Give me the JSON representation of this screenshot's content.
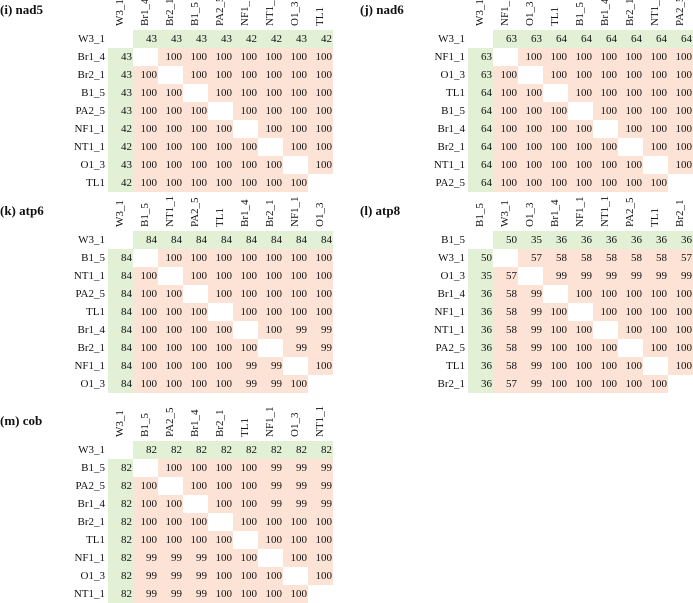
{
  "colors": {
    "similarity_high": "#fde3d6",
    "reference": "#e2f0d5",
    "diagonal": "#ffffff"
  },
  "chart_data": [
    {
      "type": "heatmap",
      "panel": "i",
      "title": "(i) nad5",
      "labels": [
        "W3_1",
        "Br1_4",
        "Br2_1",
        "B1_5",
        "PA2_5",
        "NF1_1",
        "NT1_1",
        "O1_3",
        "TL1"
      ],
      "values": [
        [
          null,
          43,
          43,
          43,
          43,
          42,
          42,
          43,
          42
        ],
        [
          43,
          null,
          100,
          100,
          100,
          100,
          100,
          100,
          100
        ],
        [
          43,
          100,
          null,
          100,
          100,
          100,
          100,
          100,
          100
        ],
        [
          43,
          100,
          100,
          null,
          100,
          100,
          100,
          100,
          100
        ],
        [
          43,
          100,
          100,
          100,
          null,
          100,
          100,
          100,
          100
        ],
        [
          42,
          100,
          100,
          100,
          100,
          null,
          100,
          100,
          100
        ],
        [
          42,
          100,
          100,
          100,
          100,
          100,
          null,
          100,
          100
        ],
        [
          43,
          100,
          100,
          100,
          100,
          100,
          100,
          null,
          100
        ],
        [
          42,
          100,
          100,
          100,
          100,
          100,
          100,
          100,
          null
        ]
      ]
    },
    {
      "type": "heatmap",
      "panel": "j",
      "title": "(j) nad6",
      "labels": [
        "W3_1",
        "NF1_1",
        "O1_3",
        "TL1",
        "B1_5",
        "Br1_4",
        "Br2_1",
        "NT1_1",
        "PA2_5"
      ],
      "values": [
        [
          null,
          63,
          63,
          64,
          64,
          64,
          64,
          64,
          64
        ],
        [
          63,
          null,
          100,
          100,
          100,
          100,
          100,
          100,
          100
        ],
        [
          63,
          100,
          null,
          100,
          100,
          100,
          100,
          100,
          100
        ],
        [
          64,
          100,
          100,
          null,
          100,
          100,
          100,
          100,
          100
        ],
        [
          64,
          100,
          100,
          100,
          null,
          100,
          100,
          100,
          100
        ],
        [
          64,
          100,
          100,
          100,
          100,
          null,
          100,
          100,
          100
        ],
        [
          64,
          100,
          100,
          100,
          100,
          100,
          null,
          100,
          100
        ],
        [
          64,
          100,
          100,
          100,
          100,
          100,
          100,
          null,
          100
        ],
        [
          64,
          100,
          100,
          100,
          100,
          100,
          100,
          100,
          null
        ]
      ]
    },
    {
      "type": "heatmap",
      "panel": "k",
      "title": "(k) atp6",
      "labels": [
        "W3_1",
        "B1_5",
        "NT1_1",
        "PA2_5",
        "TL1",
        "Br1_4",
        "Br2_1",
        "NF1_1",
        "O1_3"
      ],
      "values": [
        [
          null,
          84,
          84,
          84,
          84,
          84,
          84,
          84,
          84
        ],
        [
          84,
          null,
          100,
          100,
          100,
          100,
          100,
          100,
          100
        ],
        [
          84,
          100,
          null,
          100,
          100,
          100,
          100,
          100,
          100
        ],
        [
          84,
          100,
          100,
          null,
          100,
          100,
          100,
          100,
          100
        ],
        [
          84,
          100,
          100,
          100,
          null,
          100,
          100,
          100,
          100
        ],
        [
          84,
          100,
          100,
          100,
          100,
          null,
          100,
          99,
          99
        ],
        [
          84,
          100,
          100,
          100,
          100,
          100,
          null,
          99,
          99
        ],
        [
          84,
          100,
          100,
          100,
          100,
          99,
          99,
          null,
          100
        ],
        [
          84,
          100,
          100,
          100,
          100,
          99,
          99,
          100,
          null
        ]
      ]
    },
    {
      "type": "heatmap",
      "panel": "l",
      "title": "(l) atp8",
      "labels": [
        "B1_5",
        "W3_1",
        "O1_3",
        "Br1_4",
        "NF1_1",
        "NT1_1",
        "PA2_5",
        "TL1",
        "Br2_1"
      ],
      "values": [
        [
          null,
          50,
          35,
          36,
          36,
          36,
          36,
          36,
          36
        ],
        [
          50,
          null,
          57,
          58,
          58,
          58,
          58,
          58,
          57
        ],
        [
          35,
          57,
          null,
          99,
          99,
          99,
          99,
          99,
          99
        ],
        [
          36,
          58,
          99,
          null,
          100,
          100,
          100,
          100,
          100
        ],
        [
          36,
          58,
          99,
          100,
          null,
          100,
          100,
          100,
          100
        ],
        [
          36,
          58,
          99,
          100,
          100,
          null,
          100,
          100,
          100
        ],
        [
          36,
          58,
          99,
          100,
          100,
          100,
          null,
          100,
          100
        ],
        [
          36,
          58,
          99,
          100,
          100,
          100,
          100,
          null,
          100
        ],
        [
          36,
          57,
          99,
          100,
          100,
          100,
          100,
          100,
          null
        ]
      ]
    },
    {
      "type": "heatmap",
      "panel": "m",
      "title": "(m) cob",
      "labels": [
        "W3_1",
        "B1_5",
        "PA2_5",
        "Br1_4",
        "Br2_1",
        "TL1",
        "NF1_1",
        "O1_3",
        "NT1_1"
      ],
      "values": [
        [
          null,
          82,
          82,
          82,
          82,
          82,
          82,
          82,
          82
        ],
        [
          82,
          null,
          100,
          100,
          100,
          100,
          99,
          99,
          99
        ],
        [
          82,
          100,
          null,
          100,
          100,
          100,
          99,
          99,
          99
        ],
        [
          82,
          100,
          100,
          null,
          100,
          100,
          99,
          99,
          99
        ],
        [
          82,
          100,
          100,
          100,
          null,
          100,
          100,
          100,
          100
        ],
        [
          82,
          100,
          100,
          100,
          100,
          null,
          100,
          100,
          100
        ],
        [
          82,
          99,
          99,
          99,
          100,
          100,
          null,
          100,
          100
        ],
        [
          82,
          99,
          99,
          99,
          100,
          100,
          100,
          null,
          100
        ],
        [
          82,
          99,
          99,
          99,
          100,
          100,
          100,
          100,
          null
        ]
      ]
    }
  ]
}
